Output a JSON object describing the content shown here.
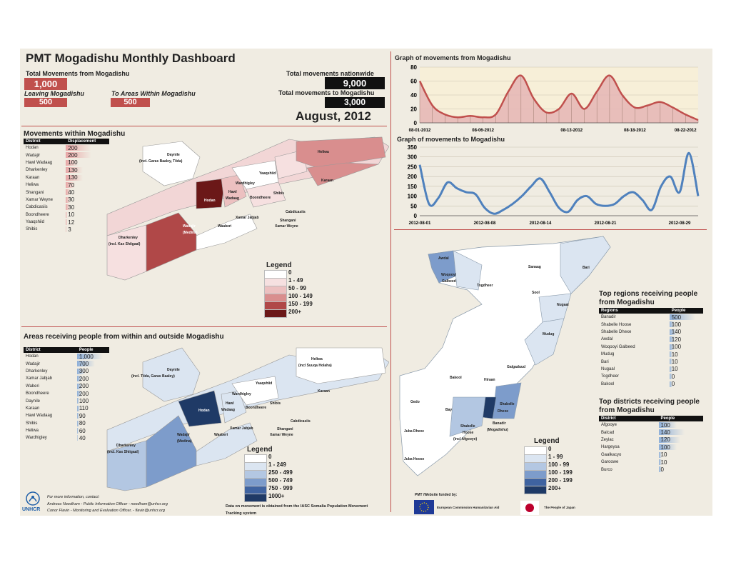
{
  "header": {
    "title": "PMT Mogadishu Monthly Dashboard",
    "total_from_label": "Total Movements from Mogadishu",
    "total_from_value": "1,000",
    "leaving_label": "Leaving Mogadishu",
    "leaving_value": "500",
    "within_label": "To Areas Within Mogadishu",
    "within_value": "500",
    "nationwide_label": "Total movements nationwide",
    "nationwide_value": "9,000",
    "to_label": "Total movements to Mogadishu",
    "to_value": "3,000",
    "month": "August, 2012"
  },
  "within": {
    "title": "Movements within Mogadishu",
    "col_district": "District",
    "col_displacement": "Displacement",
    "rows": [
      {
        "district": "Hodan",
        "value": 200
      },
      {
        "district": "Wadajir",
        "value": 200
      },
      {
        "district": "Hawl Wadaag",
        "value": 100
      },
      {
        "district": "Dharkenley",
        "value": 130
      },
      {
        "district": "Karaan",
        "value": 130
      },
      {
        "district": "Heliwa",
        "value": 70
      },
      {
        "district": "Shangani",
        "value": 40
      },
      {
        "district": "Xamar Weyne",
        "value": 30
      },
      {
        "district": "Cabdicasiis",
        "value": 30
      },
      {
        "district": "Boondheere",
        "value": 10
      },
      {
        "district": "Yaaqshiid",
        "value": 12
      },
      {
        "district": "Shibis",
        "value": 3
      }
    ],
    "legend_title": "Legend",
    "legend": [
      {
        "label": "0",
        "color": "#ffffff"
      },
      {
        "label": "1 - 49",
        "color": "#f6e0e0"
      },
      {
        "label": "50 - 99",
        "color": "#ecc0c0"
      },
      {
        "label": "100 - 149",
        "color": "#d98e8e"
      },
      {
        "label": "150 - 199",
        "color": "#b04848"
      },
      {
        "label": "200+",
        "color": "#6b1818"
      }
    ]
  },
  "receiving": {
    "title": "Areas receiving people from within and outside Mogadishu",
    "col_district": "District",
    "col_people": "People",
    "rows": [
      {
        "district": "Hodan",
        "value": "1,000",
        "num": 1000
      },
      {
        "district": "Wadajir",
        "value": "700",
        "num": 700
      },
      {
        "district": "Dharkenley",
        "value": "300",
        "num": 300
      },
      {
        "district": "Xamar Jabjab",
        "value": "200",
        "num": 200
      },
      {
        "district": "Waberi",
        "value": "200",
        "num": 200
      },
      {
        "district": "Boondheere",
        "value": "200",
        "num": 200
      },
      {
        "district": "Daynile",
        "value": "100",
        "num": 100
      },
      {
        "district": "Karaan",
        "value": "110",
        "num": 110
      },
      {
        "district": "Hawl Wadaag",
        "value": "90",
        "num": 90
      },
      {
        "district": "Shibis",
        "value": "80",
        "num": 80
      },
      {
        "district": "Heliwa",
        "value": "60",
        "num": 60
      },
      {
        "district": "Wardhigley",
        "value": "40",
        "num": 40
      }
    ],
    "legend_title": "Legend",
    "legend": [
      {
        "label": "0",
        "color": "#ffffff"
      },
      {
        "label": "1 - 249",
        "color": "#dbe5f1"
      },
      {
        "label": "250 - 499",
        "color": "#b3c7e2"
      },
      {
        "label": "500 - 749",
        "color": "#7d9ccb"
      },
      {
        "label": "750 - 999",
        "color": "#3f63a0"
      },
      {
        "label": "1000+",
        "color": "#1f3a66"
      }
    ]
  },
  "map_labels": {
    "daynile": "Daynile",
    "daynile_sub1": "(Incl. Garas Baaley, Tiida)",
    "daynile_sub2": "(Incl. Tiida, Garas Baaley)",
    "heliwa": "Heliwa",
    "heliwa_sub": "(incl Suuqa Holaha)",
    "karaan": "Karaan",
    "yaaqshiid": "Yaaqshiid",
    "wardhigley": "Wardhigley",
    "hodan": "Hodan",
    "hawl": "Hawl",
    "wadaag": "Wadaag",
    "boondheere": "Boondheere",
    "shibis": "Shibis",
    "cabdicasiis": "Cabdicasiis",
    "xamar_jabjab": "Xamar Jabjab",
    "shangani": "Shangani",
    "xamar_weyne": "Xamar Weyne",
    "wadajir": "Wadajir",
    "wadajir_sub": "(Medina)",
    "waaberi": "Waaberi",
    "dharkenley": "Dharkenley",
    "dharkenley_sub": "(incl. Kax Shiigaal)"
  },
  "chart_data": [
    {
      "type": "area",
      "title": "Graph of movements from Mogadishu",
      "x": [
        "08-01-2012",
        "08-02-2012",
        "08-03-2012",
        "08-04-2012",
        "08-05-2012",
        "08-06-2012",
        "08-07-2012",
        "08-08-2012",
        "08-09-2012",
        "08-10-2012",
        "08-11-2012",
        "08-12-2012",
        "08-13-2012",
        "08-14-2012",
        "08-15-2012",
        "08-16-2012",
        "08-17-2012",
        "08-18-2012",
        "08-19-2012",
        "08-20-2012",
        "08-21-2012",
        "08-22-2012",
        "08-23-2012"
      ],
      "xticks": [
        "08-01-2012",
        "08-06-2012",
        "08-13-2012",
        "08-18-2012",
        "08-22-2012"
      ],
      "values": [
        60,
        25,
        12,
        8,
        10,
        8,
        12,
        45,
        68,
        35,
        15,
        20,
        42,
        20,
        45,
        68,
        40,
        22,
        25,
        30,
        22,
        12,
        4
      ],
      "ylim": [
        0,
        80
      ],
      "yticks": [
        0,
        20,
        40,
        60,
        80
      ],
      "color": "#c0504d",
      "fill": "#e6b8b7",
      "grid": true
    },
    {
      "type": "line",
      "title": "Graph of movements to Mogadishu",
      "x": [
        "2012-08-01",
        "2012-08-02",
        "2012-08-03",
        "2012-08-04",
        "2012-08-05",
        "2012-08-06",
        "2012-08-07",
        "2012-08-08",
        "2012-08-09",
        "2012-08-10",
        "2012-08-11",
        "2012-08-12",
        "2012-08-13",
        "2012-08-14",
        "2012-08-15",
        "2012-08-16",
        "2012-08-17",
        "2012-08-18",
        "2012-08-19",
        "2012-08-20",
        "2012-08-21",
        "2012-08-22",
        "2012-08-23",
        "2012-08-24",
        "2012-08-25",
        "2012-08-26",
        "2012-08-27",
        "2012-08-28",
        "2012-08-29",
        "2012-08-30",
        "2012-08-31"
      ],
      "xticks": [
        "2012-08-01",
        "2012-08-08",
        "2012-08-14",
        "2012-08-21",
        "2012-08-29"
      ],
      "values": [
        260,
        60,
        90,
        170,
        140,
        120,
        110,
        40,
        10,
        30,
        60,
        100,
        150,
        190,
        120,
        40,
        20,
        80,
        100,
        60,
        50,
        60,
        100,
        120,
        80,
        30,
        150,
        200,
        120,
        320,
        100
      ],
      "ylim": [
        0,
        350
      ],
      "yticks": [
        0,
        50,
        100,
        150,
        200,
        250,
        300,
        350
      ],
      "color": "#4f81bd",
      "grid": true
    }
  ],
  "regions": {
    "title": "Top regions receiving people from Mogadishu",
    "col_region": "Regions",
    "col_people": "People",
    "rows": [
      {
        "name": "Banadir",
        "value": 500
      },
      {
        "name": "Shabelle Hoose",
        "value": 100
      },
      {
        "name": "Shabelle Dhexe",
        "value": 140
      },
      {
        "name": "Awdal",
        "value": 120
      },
      {
        "name": "Woqooyi Galbeed",
        "value": 100
      },
      {
        "name": "Mudug",
        "value": 10
      },
      {
        "name": "Bari",
        "value": 10
      },
      {
        "name": "Nugaal",
        "value": 10
      },
      {
        "name": "Togdheer",
        "value": 0
      },
      {
        "name": "Bakool",
        "value": 0
      }
    ]
  },
  "districts": {
    "title": "Top districts receiving people from Mogadishu",
    "col_district": "District",
    "col_people": "People",
    "rows": [
      {
        "name": "Afgooye",
        "value": 100
      },
      {
        "name": "Balcad",
        "value": 140
      },
      {
        "name": "Zeylac",
        "value": 120
      },
      {
        "name": "Hargeysa",
        "value": 100
      },
      {
        "name": "Gaalkacyo",
        "value": 10
      },
      {
        "name": "Garoowe",
        "value": 10
      },
      {
        "name": "Burco",
        "value": 0
      }
    ]
  },
  "somalia": {
    "legend_title": "Legend",
    "legend": [
      {
        "label": "0",
        "color": "#ffffff"
      },
      {
        "label": "1 - 99",
        "color": "#dbe5f1"
      },
      {
        "label": "100 - 99",
        "color": "#b3c7e2"
      },
      {
        "label": "100 - 199",
        "color": "#7d9ccb"
      },
      {
        "label": "200 - 199",
        "color": "#3f63a0"
      },
      {
        "label": "200+",
        "color": "#1f3a66"
      }
    ],
    "labels": {
      "awdal": "Awdal",
      "woqooyi": "Woqooyi",
      "galbeed": "Galbeed",
      "togdheer": "Togdheer",
      "sanaag": "Sanaag",
      "bari": "Bari",
      "sool": "Sool",
      "nugaal": "Nugaal",
      "mudug": "Mudug",
      "galguduud": "Galgaduud",
      "hiraan": "Hiraan",
      "bakool": "Bakool",
      "gedo": "Gedo",
      "bay": "Bay",
      "shabelle_dhexe1": "Shabelle",
      "shabelle_dhexe2": "Dhexe",
      "banadir": "Banadir",
      "banadir_sub": "(Mogadishu)",
      "shabelle_hoose1": "Shabelle",
      "shabelle_hoose2": "Hoose",
      "shabelle_hoose_sub": "(incl Afgooye)",
      "juba_dhexe": "Juba Dhexe",
      "juba_hoose": "Juba Hoose"
    }
  },
  "footer": {
    "contact_title": "For more information, contact:",
    "contact_1": "Andreas Needham - Public Information Officer - needham@unhcr.org",
    "contact_2": "Conor Flavin  -  Monitoring and Evaluation Officer, - flavin@unhcr.org",
    "unhcr_logo_text": "UNHCR",
    "data_note": "Data on movement is obtained from the IASC Somalia Population Movement Tracking system",
    "funded_by": "PMT /Website funded by:",
    "eu_text": "European Commission Humanitarian Aid",
    "japan_text": "The People of Japan"
  }
}
